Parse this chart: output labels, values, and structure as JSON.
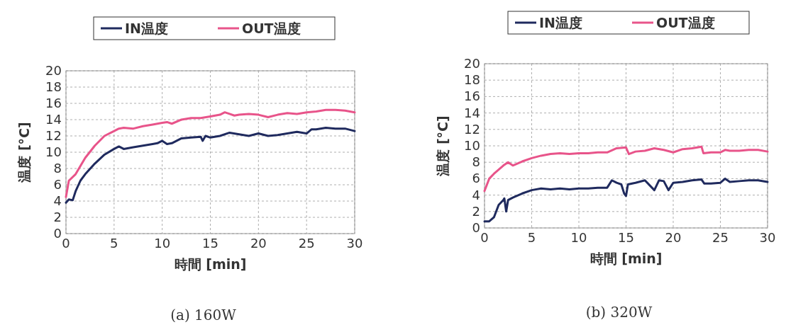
{
  "chart_data": [
    {
      "type": "line",
      "title": "(a) 160W",
      "xlabel": "時間 [min]",
      "ylabel": "温度 [°C]",
      "xlim": [
        0,
        30
      ],
      "xticks": [
        0,
        5,
        10,
        15,
        20,
        25,
        30
      ],
      "ylim": [
        0,
        20
      ],
      "yticks": [
        0,
        2,
        4,
        6,
        8,
        10,
        12,
        14,
        16,
        18,
        20
      ],
      "grid": true,
      "legend": "top",
      "line_style": "solid",
      "marker": "none",
      "series": [
        {
          "name": "IN温度",
          "color": "#1f2a5e",
          "x": [
            0,
            0.3,
            0.7,
            1,
            1.5,
            2,
            3,
            4,
            5,
            5.5,
            6,
            7,
            8,
            9,
            9.5,
            10,
            10.5,
            11,
            12,
            13,
            14,
            14.2,
            14.5,
            15,
            16,
            17,
            18,
            19,
            20,
            21,
            22,
            23,
            24,
            25,
            25.5,
            26,
            27,
            28,
            29,
            30
          ],
          "values": [
            3.8,
            4.2,
            4.1,
            5.2,
            6.5,
            7.3,
            8.6,
            9.7,
            10.4,
            10.7,
            10.4,
            10.6,
            10.8,
            11.0,
            11.1,
            11.4,
            11.0,
            11.1,
            11.7,
            11.8,
            11.9,
            11.4,
            12.0,
            11.8,
            12.0,
            12.4,
            12.2,
            12.0,
            12.3,
            12.0,
            12.1,
            12.3,
            12.5,
            12.3,
            12.8,
            12.8,
            13.0,
            12.9,
            12.9,
            12.6
          ]
        },
        {
          "name": "OUT温度",
          "color": "#e8548a",
          "x": [
            0,
            0.3,
            1,
            1.5,
            2,
            3,
            4,
            5,
            5.5,
            6,
            7,
            8,
            9,
            10,
            10.5,
            11,
            12,
            13,
            14,
            15,
            16,
            16.5,
            17,
            17.5,
            18,
            19,
            20,
            21,
            22,
            23,
            24,
            25,
            26,
            27,
            28,
            29,
            30
          ],
          "values": [
            4.5,
            6.5,
            7.3,
            8.3,
            9.3,
            10.8,
            12.0,
            12.6,
            12.9,
            13.0,
            12.9,
            13.2,
            13.4,
            13.6,
            13.7,
            13.5,
            14.0,
            14.2,
            14.2,
            14.4,
            14.6,
            14.9,
            14.7,
            14.5,
            14.6,
            14.7,
            14.6,
            14.3,
            14.6,
            14.8,
            14.7,
            14.9,
            15.0,
            15.2,
            15.2,
            15.1,
            14.9
          ]
        }
      ]
    },
    {
      "type": "line",
      "title": "(b) 320W",
      "xlabel": "時間 [min]",
      "ylabel": "温度 [°C]",
      "xlim": [
        0,
        30
      ],
      "xticks": [
        0,
        5,
        10,
        15,
        20,
        25,
        30
      ],
      "ylim": [
        0,
        20
      ],
      "yticks": [
        0,
        2,
        4,
        6,
        8,
        10,
        12,
        14,
        16,
        18,
        20
      ],
      "grid": true,
      "legend": "top",
      "line_style": "solid",
      "marker": "none",
      "series": [
        {
          "name": "IN温度",
          "color": "#1f2a5e",
          "x": [
            0,
            0.5,
            1,
            1.5,
            2,
            2.1,
            2.3,
            2.5,
            3,
            4,
            5,
            6,
            7,
            8,
            9,
            10,
            11,
            12,
            13,
            13.5,
            14,
            14.5,
            14.8,
            15,
            15.2,
            16,
            17,
            18,
            18.5,
            19,
            19.5,
            20,
            21,
            22,
            23,
            23.3,
            24,
            25,
            25.5,
            26,
            27,
            28,
            29,
            30
          ],
          "values": [
            0.8,
            0.8,
            1.3,
            2.8,
            3.4,
            3.6,
            2.0,
            3.4,
            3.7,
            4.2,
            4.6,
            4.8,
            4.7,
            4.8,
            4.7,
            4.8,
            4.8,
            4.9,
            4.9,
            5.8,
            5.5,
            5.3,
            4.2,
            3.9,
            5.3,
            5.5,
            5.8,
            4.6,
            5.8,
            5.7,
            4.6,
            5.5,
            5.6,
            5.8,
            5.9,
            5.4,
            5.4,
            5.5,
            6.0,
            5.6,
            5.7,
            5.8,
            5.8,
            5.6
          ]
        },
        {
          "name": "OUT温度",
          "color": "#e8548a",
          "x": [
            0,
            0.5,
            1,
            2,
            2.5,
            3,
            4,
            5,
            6,
            7,
            8,
            9,
            10,
            11,
            12,
            13,
            14,
            15,
            15.3,
            16,
            17,
            18,
            19,
            20,
            21,
            22,
            23,
            23.2,
            24,
            25,
            25.5,
            26,
            27,
            28,
            29,
            30
          ],
          "values": [
            4.5,
            6.0,
            6.6,
            7.6,
            8.0,
            7.6,
            8.1,
            8.5,
            8.8,
            9.0,
            9.1,
            9.0,
            9.1,
            9.1,
            9.2,
            9.2,
            9.7,
            9.8,
            9.0,
            9.3,
            9.4,
            9.7,
            9.5,
            9.2,
            9.6,
            9.7,
            9.9,
            9.1,
            9.2,
            9.2,
            9.5,
            9.4,
            9.4,
            9.5,
            9.5,
            9.3
          ]
        }
      ]
    }
  ]
}
